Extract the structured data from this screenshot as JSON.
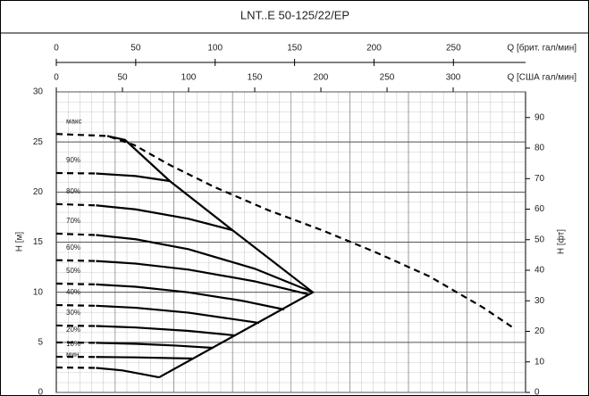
{
  "chart_data": {
    "type": "line",
    "title": "LNT..E 50-125/22/EP",
    "x2_label": "Q [брит. гал/мин]",
    "x2lim": [
      0,
      295.4
    ],
    "x2ticks": [
      0,
      50,
      100,
      150,
      200,
      250
    ],
    "x_label": "Q [США гал/мин]",
    "xlim": [
      0,
      354.7
    ],
    "xticks": [
      0,
      50,
      100,
      150,
      200,
      250,
      300
    ],
    "y_label": "H [м]",
    "ylim": [
      0,
      30
    ],
    "yticks": [
      0,
      5,
      10,
      15,
      20,
      25,
      30
    ],
    "y2_label": "H [фт]",
    "y2lim": [
      0,
      98.4
    ],
    "y2ticks": [
      0,
      10,
      20,
      30,
      40,
      50,
      60,
      70,
      80,
      90
    ],
    "grid": true,
    "series": [
      {
        "name": "макс",
        "color": "#000000",
        "style": "dashed",
        "x": [
          0,
          18.2,
          38.5,
          58.8,
          85.8,
          119.6,
          160.1,
          200.7,
          241.2,
          281.8,
          322.3,
          346.0
        ],
        "values": [
          25.8,
          25.7,
          25.6,
          24.7,
          22.7,
          20.5,
          18.2,
          16.2,
          14.0,
          11.6,
          8.5,
          6.4
        ]
      },
      {
        "color": "#000000",
        "style": "solid",
        "x": [
          38.5,
          52.0,
          85.8,
          133.1,
          193.9,
          77.7
        ],
        "values": [
          25.6,
          25.2,
          21.1,
          16.2,
          10.0,
          1.51
        ]
      },
      {
        "name": "90%",
        "color": "#000000",
        "style": "dashed-start",
        "x": [
          0,
          30,
          60,
          85.8
        ],
        "values": [
          21.9,
          21.85,
          21.6,
          21.1
        ]
      },
      {
        "name": "80%",
        "color": "#000000",
        "style": "dashed-start",
        "x": [
          0,
          30,
          60,
          100,
          133.1
        ],
        "values": [
          18.8,
          18.67,
          18.27,
          17.33,
          16.2
        ]
      },
      {
        "name": "70%",
        "color": "#000000",
        "style": "dashed-start",
        "x": [
          0,
          30,
          60,
          100,
          150,
          193.9
        ],
        "values": [
          15.85,
          15.71,
          15.29,
          14.29,
          12.35,
          10.0
        ]
      },
      {
        "name": "60%",
        "color": "#000000",
        "style": "dashed-start",
        "x": [
          0,
          30,
          60,
          100,
          150,
          190.4
        ],
        "values": [
          13.2,
          13.12,
          12.86,
          12.26,
          11.09,
          9.8
        ]
      },
      {
        "name": "50%",
        "color": "#000000",
        "style": "dashed-start",
        "x": [
          0,
          30,
          60,
          100,
          140,
          172.3
        ],
        "values": [
          10.86,
          10.78,
          10.55,
          9.99,
          9.16,
          8.28
        ]
      },
      {
        "name": "40%",
        "color": "#000000",
        "style": "dashed-start",
        "x": [
          0,
          30,
          60,
          100,
          153.4
        ],
        "values": [
          8.72,
          8.65,
          8.45,
          7.96,
          6.94
        ]
      },
      {
        "name": "30%",
        "color": "#000000",
        "style": "dashed-start",
        "x": [
          0,
          30,
          60,
          100,
          134.5
        ],
        "values": [
          6.68,
          6.63,
          6.48,
          6.14,
          5.7
        ]
      },
      {
        "name": "20%",
        "color": "#000000",
        "style": "dashed-start",
        "x": [
          0,
          30,
          60,
          90,
          118.2
        ],
        "values": [
          4.99,
          4.95,
          4.85,
          4.68,
          4.45
        ]
      },
      {
        "name": "10%",
        "color": "#000000",
        "style": "dashed-start",
        "x": [
          0,
          30,
          60,
          102.7
        ],
        "values": [
          3.56,
          3.54,
          3.5,
          3.38
        ]
      },
      {
        "name": "мин",
        "color": "#000000",
        "style": "dashed-start",
        "x": [
          0,
          30,
          50,
          77.7
        ],
        "values": [
          2.49,
          2.45,
          2.2,
          1.51
        ]
      }
    ]
  }
}
